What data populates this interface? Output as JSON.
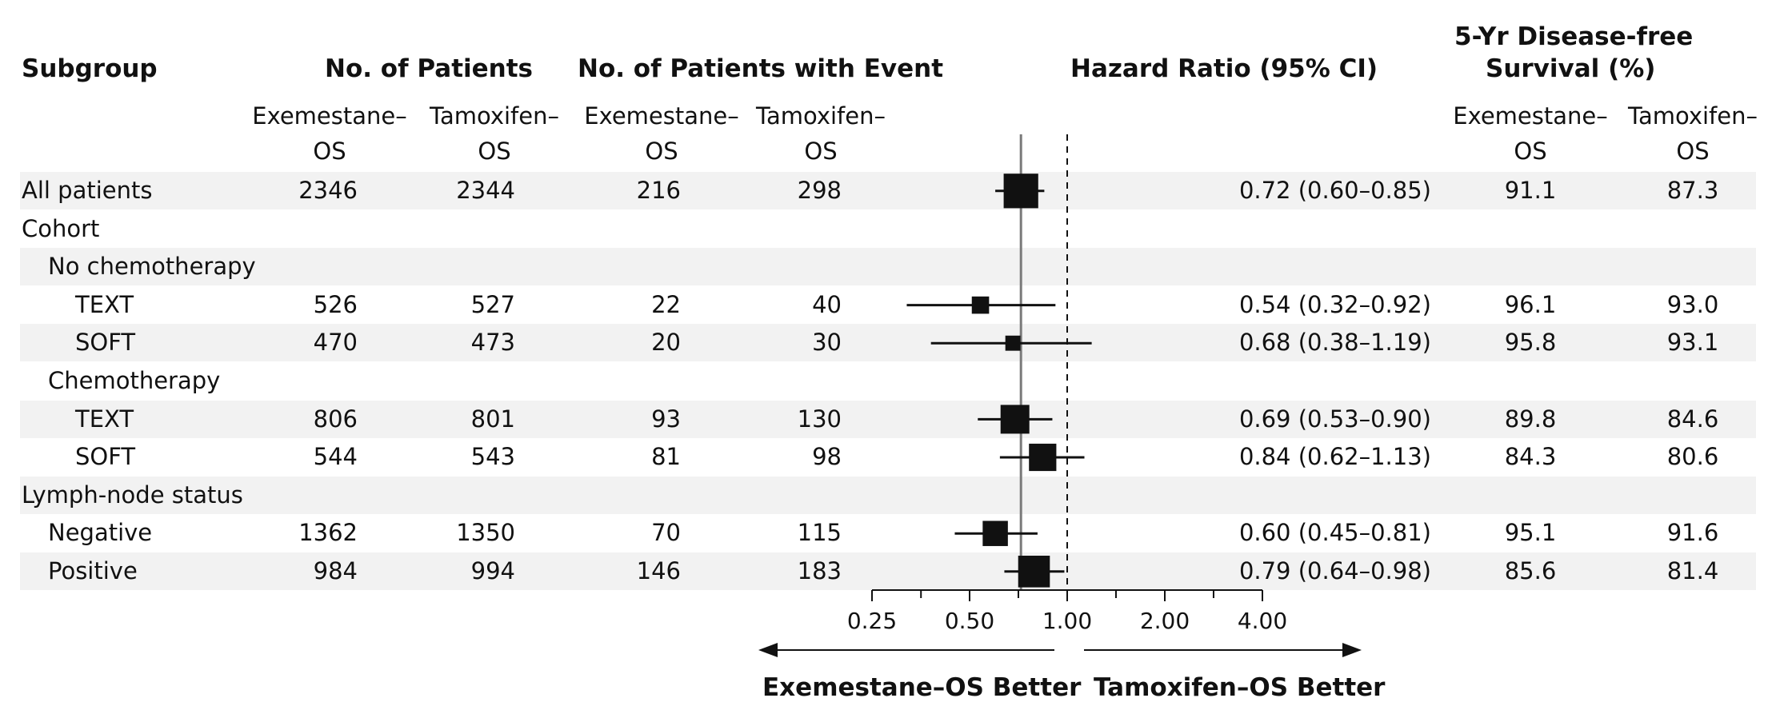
{
  "headers": {
    "subgroup": "Subgroup",
    "patients": "No. of Patients",
    "events": "No. of Patients with Event",
    "hr": "Hazard Ratio (95% CI)",
    "dfs_line1": "5-Yr Disease-free",
    "dfs_line2": "Survival (%)"
  },
  "arms": {
    "a_line1": "Exemestane–",
    "a_line2": "OS",
    "b_line1": "Tamoxifen–",
    "b_line2": "OS"
  },
  "rows": [
    {
      "label": "All patients",
      "indent": 0,
      "n_a": "2346",
      "n_b": "2344",
      "e_a": "216",
      "e_b": "298",
      "hr_text": "0.72 (0.60–0.85)",
      "dfs_a": "91.1",
      "dfs_b": "87.3"
    },
    {
      "label": "Cohort",
      "indent": 0
    },
    {
      "label": "No chemotherapy",
      "indent": 1
    },
    {
      "label": "TEXT",
      "indent": 2,
      "n_a": "526",
      "n_b": "527",
      "e_a": "22",
      "e_b": "40",
      "hr_text": "0.54 (0.32–0.92)",
      "dfs_a": "96.1",
      "dfs_b": "93.0"
    },
    {
      "label": "SOFT",
      "indent": 2,
      "n_a": "470",
      "n_b": "473",
      "e_a": "20",
      "e_b": "30",
      "hr_text": "0.68 (0.38–1.19)",
      "dfs_a": "95.8",
      "dfs_b": "93.1"
    },
    {
      "label": "Chemotherapy",
      "indent": 1
    },
    {
      "label": "TEXT",
      "indent": 2,
      "n_a": "806",
      "n_b": "801",
      "e_a": "93",
      "e_b": "130",
      "hr_text": "0.69 (0.53–0.90)",
      "dfs_a": "89.8",
      "dfs_b": "84.6"
    },
    {
      "label": "SOFT",
      "indent": 2,
      "n_a": "544",
      "n_b": "543",
      "e_a": "81",
      "e_b": "98",
      "hr_text": "0.84 (0.62–1.13)",
      "dfs_a": "84.3",
      "dfs_b": "80.6"
    },
    {
      "label": "Lymph-node status",
      "indent": 0
    },
    {
      "label": "Negative",
      "indent": 1,
      "n_a": "1362",
      "n_b": "1350",
      "e_a": "70",
      "e_b": "115",
      "hr_text": "0.60 (0.45–0.81)",
      "dfs_a": "95.1",
      "dfs_b": "91.6"
    },
    {
      "label": "Positive",
      "indent": 1,
      "n_a": "984",
      "n_b": "994",
      "e_a": "146",
      "e_b": "183",
      "hr_text": "0.79 (0.64–0.98)",
      "dfs_a": "85.6",
      "dfs_b": "81.4"
    }
  ],
  "chart_data": {
    "type": "forest",
    "x_scale": "log",
    "xlim": [
      0.25,
      4.0
    ],
    "ticks": [
      0.25,
      0.5,
      1.0,
      2.0,
      4.0
    ],
    "tick_labels": [
      "0.25",
      "0.50",
      "1.00",
      "2.00",
      "4.00"
    ],
    "null_line": 1.0,
    "overall_line": 0.72,
    "left_arrow_label": "Exemestane–OS Better",
    "right_arrow_label": "Tamoxifen–OS Better",
    "points": [
      {
        "row": 0,
        "hr": 0.72,
        "lo": 0.6,
        "hi": 0.85,
        "weight": 2.4
      },
      {
        "row": 3,
        "hr": 0.54,
        "lo": 0.32,
        "hi": 0.92,
        "weight": 1.2
      },
      {
        "row": 4,
        "hr": 0.68,
        "lo": 0.38,
        "hi": 1.19,
        "weight": 1.05
      },
      {
        "row": 6,
        "hr": 0.69,
        "lo": 0.53,
        "hi": 0.9,
        "weight": 2.0
      },
      {
        "row": 7,
        "hr": 0.84,
        "lo": 0.62,
        "hi": 1.13,
        "weight": 1.9
      },
      {
        "row": 9,
        "hr": 0.6,
        "lo": 0.45,
        "hi": 0.81,
        "weight": 1.75
      },
      {
        "row": 10,
        "hr": 0.79,
        "lo": 0.64,
        "hi": 0.98,
        "weight": 2.2
      }
    ],
    "colors": {
      "marker": "#111111",
      "band": "#f2f2f2",
      "overall_line": "#7a7a7a"
    }
  }
}
